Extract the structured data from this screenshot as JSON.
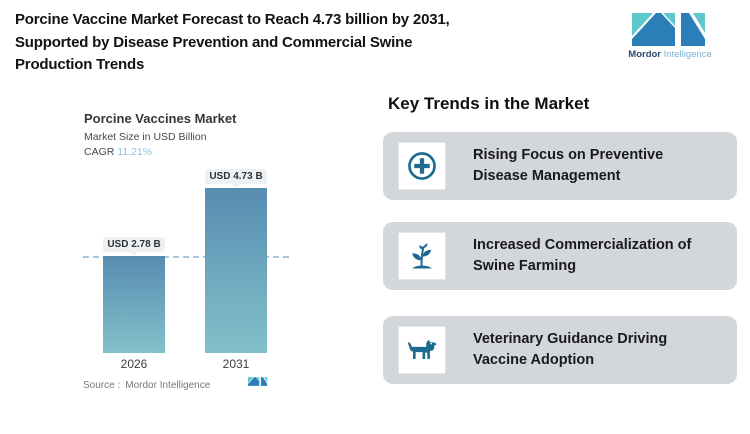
{
  "header": {
    "title": "Porcine Vaccine Market Forecast to Reach 4.73 billion by 2031, Supported by Disease Prevention and Commercial Swine Production Trends",
    "brand": {
      "name_bold": "Mordor",
      "name_light": "Intelligence"
    }
  },
  "chart_data": {
    "type": "bar",
    "title": "Porcine Vaccines Market",
    "subtitle": "Market Size in USD Billion",
    "cagr_label": "CAGR",
    "cagr_value": "11.21%",
    "categories": [
      "2026",
      "2031"
    ],
    "values": [
      2.78,
      4.73
    ],
    "value_labels": [
      "USD 2.78 B",
      "USD 4.73 B"
    ],
    "unit": "USD Billion",
    "ylim": [
      0,
      5.25
    ],
    "grid": false,
    "legend": "none",
    "reference_line": {
      "y": 2.78,
      "style": "dashed"
    }
  },
  "source": {
    "label": "Source :",
    "value": "Mordor Intelligence"
  },
  "trends": {
    "heading": "Key Trends in the Market",
    "items": [
      {
        "icon": "medical-cross-icon",
        "label": "Rising Focus on Preventive Disease Management"
      },
      {
        "icon": "sprout-icon",
        "label": "Increased Commercialization of Swine Farming"
      },
      {
        "icon": "dog-icon",
        "label": "Veterinary Guidance Driving Vaccine Adoption"
      }
    ]
  },
  "colors": {
    "bar-top": "#578cb1",
    "bar-bottom": "#82c1ca",
    "cagr-accent": "#8cc3dd",
    "dashed-line": "#a6c6db",
    "card-bg": "#d3d7db",
    "icon-accent": "#1e6b91",
    "logo-teal": "#5ec8cd",
    "logo-blue": "#2b7eb7",
    "logo-navy": "#2a4a6c",
    "logo-lightblue": "#7cb0d2"
  }
}
